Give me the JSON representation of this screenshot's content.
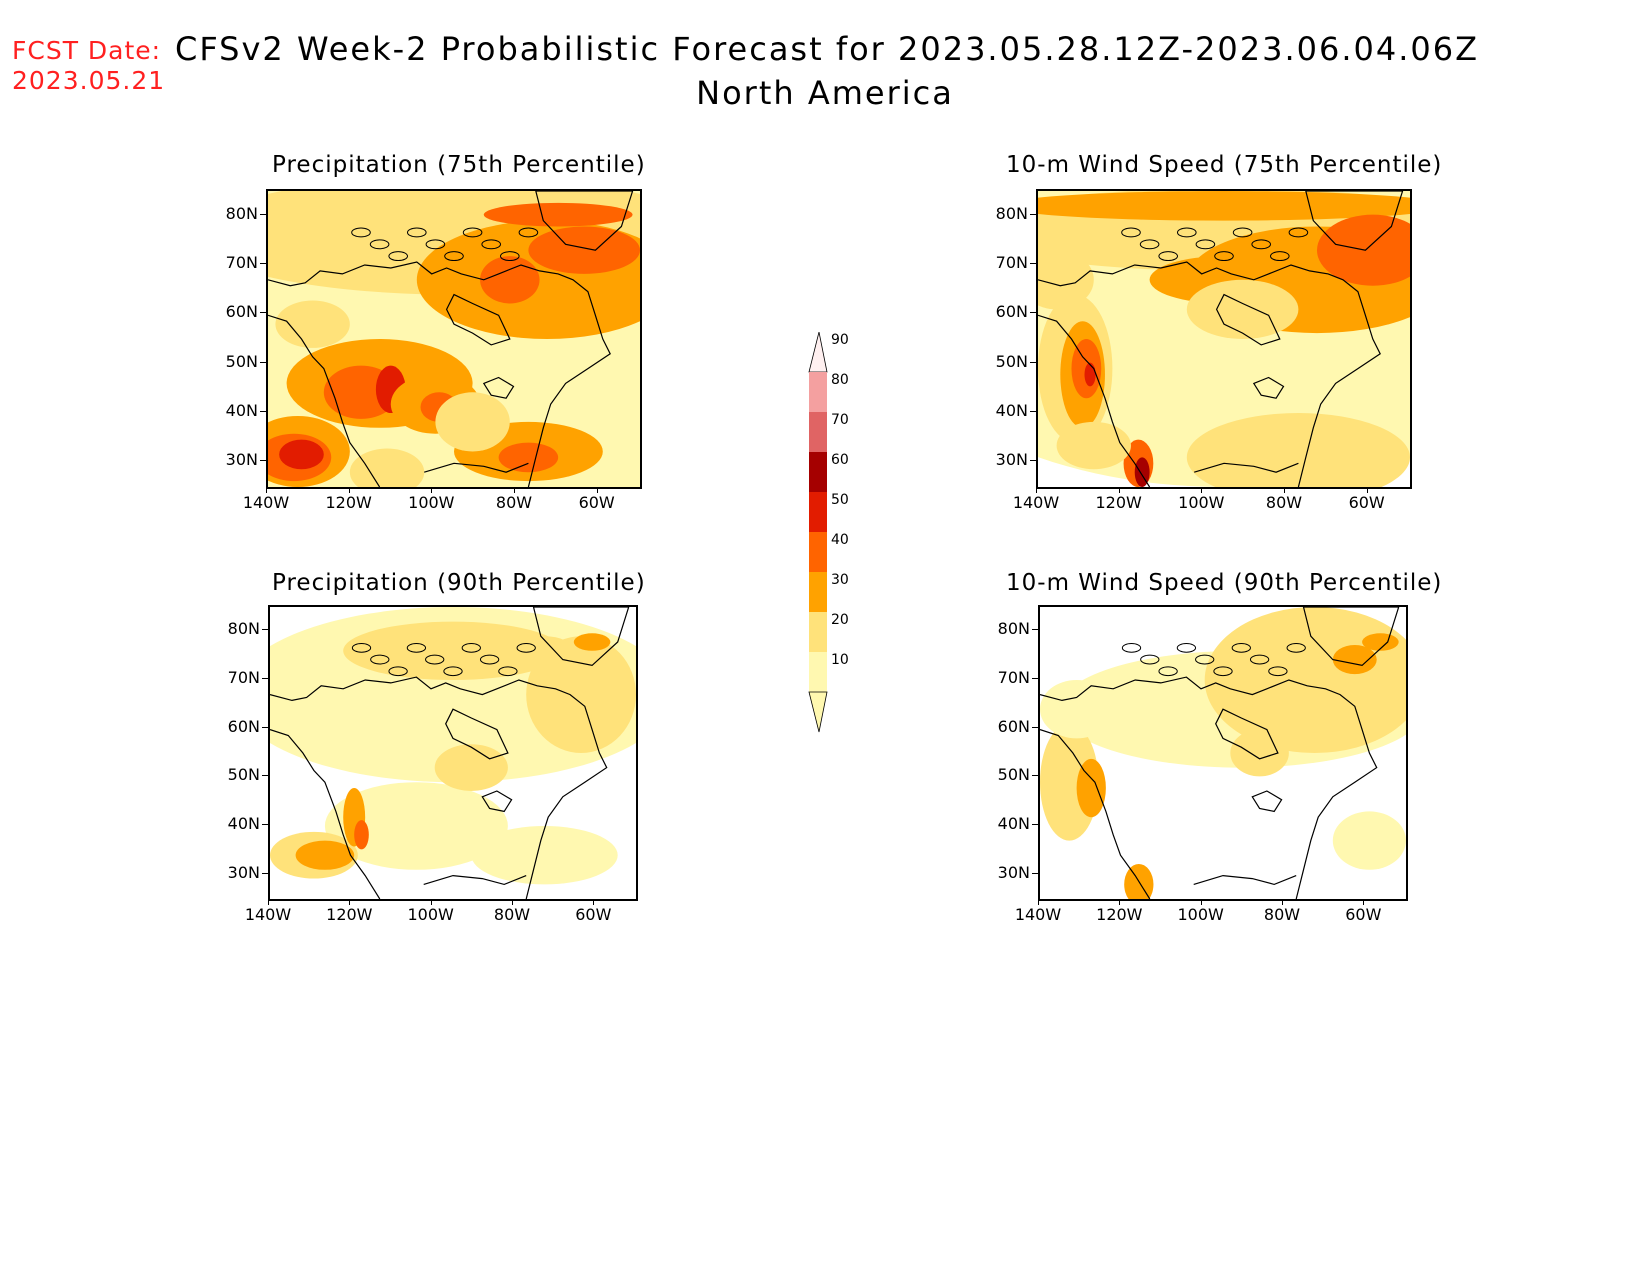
{
  "header": {
    "fcst_label": "FCST Date:",
    "fcst_date": "2023.05.21",
    "title_line1": "CFSv2 Week-2 Probabilistic Forecast for 2023.05.28.12Z-2023.06.04.06Z",
    "title_line2": "North America"
  },
  "panels": [
    {
      "title": "Precipitation (75th Percentile)",
      "variable": "precipitation",
      "percentile": 75
    },
    {
      "title": "10-m Wind Speed (75th Percentile)",
      "variable": "wind",
      "percentile": 75
    },
    {
      "title": "Precipitation (90th Percentile)",
      "variable": "precipitation",
      "percentile": 90
    },
    {
      "title": "10-m Wind Speed (90th Percentile)",
      "variable": "wind",
      "percentile": 90
    }
  ],
  "axes": {
    "lat_labels": [
      "80N",
      "70N",
      "60N",
      "50N",
      "40N",
      "30N"
    ],
    "lon_labels": [
      "140W",
      "120W",
      "100W",
      "80W",
      "60W"
    ],
    "lat_range": [
      25,
      85
    ],
    "lon_range": [
      -140,
      -50
    ]
  },
  "colorbar": {
    "levels": [
      "10",
      "20",
      "30",
      "40",
      "50",
      "60",
      "70",
      "80",
      "90"
    ],
    "colors": [
      "#fff8b0",
      "#ffe27a",
      "#ffa200",
      "#ff6400",
      "#e21c00",
      "#a50000",
      "#e06464",
      "#f4a0a0",
      "#ffe6e6"
    ]
  }
}
